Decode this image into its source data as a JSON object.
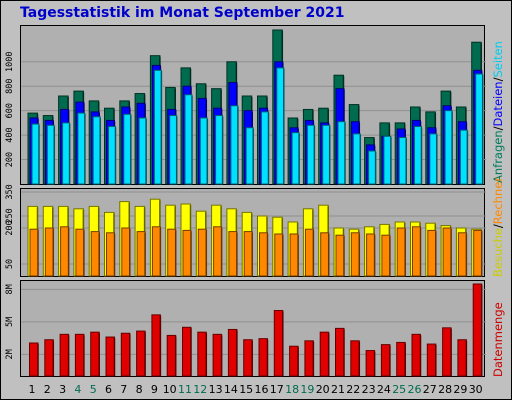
{
  "title": "Tagesstatistik im Monat September 2021",
  "chart_data": [
    {
      "type": "bar",
      "categories": [
        "1",
        "2",
        "3",
        "4",
        "5",
        "6",
        "7",
        "8",
        "9",
        "10",
        "11",
        "12",
        "13",
        "14",
        "15",
        "16",
        "17",
        "18",
        "19",
        "20",
        "21",
        "22",
        "23",
        "24",
        "25",
        "26",
        "27",
        "28",
        "29",
        "30"
      ],
      "weekend_days": [
        "4",
        "5",
        "11",
        "12",
        "18",
        "19",
        "25",
        "26"
      ],
      "series": [
        {
          "name": "Anfragen",
          "color": "#006b4e",
          "values": [
            580,
            560,
            720,
            760,
            680,
            620,
            680,
            740,
            1050,
            790,
            950,
            820,
            780,
            1000,
            720,
            720,
            1260,
            540,
            610,
            620,
            890,
            650,
            380,
            500,
            500,
            630,
            590,
            760,
            630,
            1160
          ]
        },
        {
          "name": "Dateien",
          "color": "#0000ff",
          "values": [
            540,
            520,
            610,
            670,
            590,
            520,
            630,
            660,
            970,
            610,
            800,
            700,
            620,
            830,
            600,
            620,
            1000,
            460,
            520,
            500,
            780,
            510,
            320,
            390,
            450,
            520,
            460,
            640,
            510,
            930
          ]
        },
        {
          "name": "Seiten",
          "color": "#00e0ff",
          "values": [
            490,
            480,
            500,
            580,
            550,
            470,
            570,
            540,
            930,
            560,
            730,
            540,
            560,
            640,
            460,
            590,
            950,
            420,
            480,
            480,
            510,
            410,
            270,
            390,
            380,
            470,
            410,
            600,
            440,
            900
          ]
        }
      ],
      "ylim": [
        0,
        1260
      ],
      "ticks": [
        200,
        400,
        600,
        800,
        1000
      ],
      "tick_labels": [
        "200",
        "400",
        "600",
        "800",
        "1000"
      ],
      "right_labels": [
        {
          "text": "Anfragen",
          "color": "#007b5e"
        },
        {
          "text": "/",
          "color": "#000000"
        },
        {
          "text": "Dateien",
          "color": "#0000ff"
        },
        {
          "text": "/",
          "color": "#000000"
        },
        {
          "text": "Seiten",
          "color": "#00ccee"
        }
      ]
    },
    {
      "type": "bar",
      "series": [
        {
          "name": "Rechner",
          "color": "#ffff00",
          "values": [
            290,
            290,
            290,
            280,
            290,
            265,
            310,
            290,
            320,
            295,
            300,
            270,
            295,
            280,
            265,
            250,
            245,
            225,
            280,
            295,
            200,
            195,
            205,
            215,
            225,
            225,
            220,
            210,
            200,
            195
          ]
        },
        {
          "name": "Besuche",
          "color": "#ff8800",
          "values": [
            195,
            200,
            205,
            195,
            185,
            180,
            200,
            185,
            205,
            195,
            190,
            195,
            205,
            185,
            185,
            180,
            175,
            175,
            195,
            180,
            170,
            180,
            175,
            170,
            200,
            205,
            190,
            200,
            180,
            190
          ]
        }
      ],
      "ylim": [
        0,
        350
      ],
      "ticks": [
        50,
        200,
        250,
        350
      ],
      "tick_labels": [
        "50",
        "200",
        "250",
        "350"
      ],
      "right_labels": [
        {
          "text": "Besuche",
          "color": "#cccc00"
        },
        {
          "text": "/",
          "color": "#000000"
        },
        {
          "text": "Rechner",
          "color": "#ff8800"
        }
      ]
    },
    {
      "type": "bar",
      "series": [
        {
          "name": "Datenmenge",
          "color": "#e00000",
          "values": [
            3.05,
            3.35,
            3.85,
            3.85,
            4.05,
            3.6,
            3.95,
            4.15,
            5.65,
            3.75,
            4.5,
            4.05,
            3.85,
            4.3,
            3.35,
            3.45,
            6.05,
            2.75,
            3.25,
            4.05,
            4.4,
            3.25,
            2.35,
            2.9,
            3.1,
            3.85,
            2.95,
            4.45,
            3.35,
            8.5
          ]
        }
      ],
      "ylim": [
        0,
        8.5
      ],
      "ticks": [
        2,
        5,
        8
      ],
      "tick_labels": [
        "2M",
        "5M",
        "8M"
      ],
      "right_labels": [
        {
          "text": "Datenmenge",
          "color": "#cc0000"
        }
      ]
    }
  ]
}
